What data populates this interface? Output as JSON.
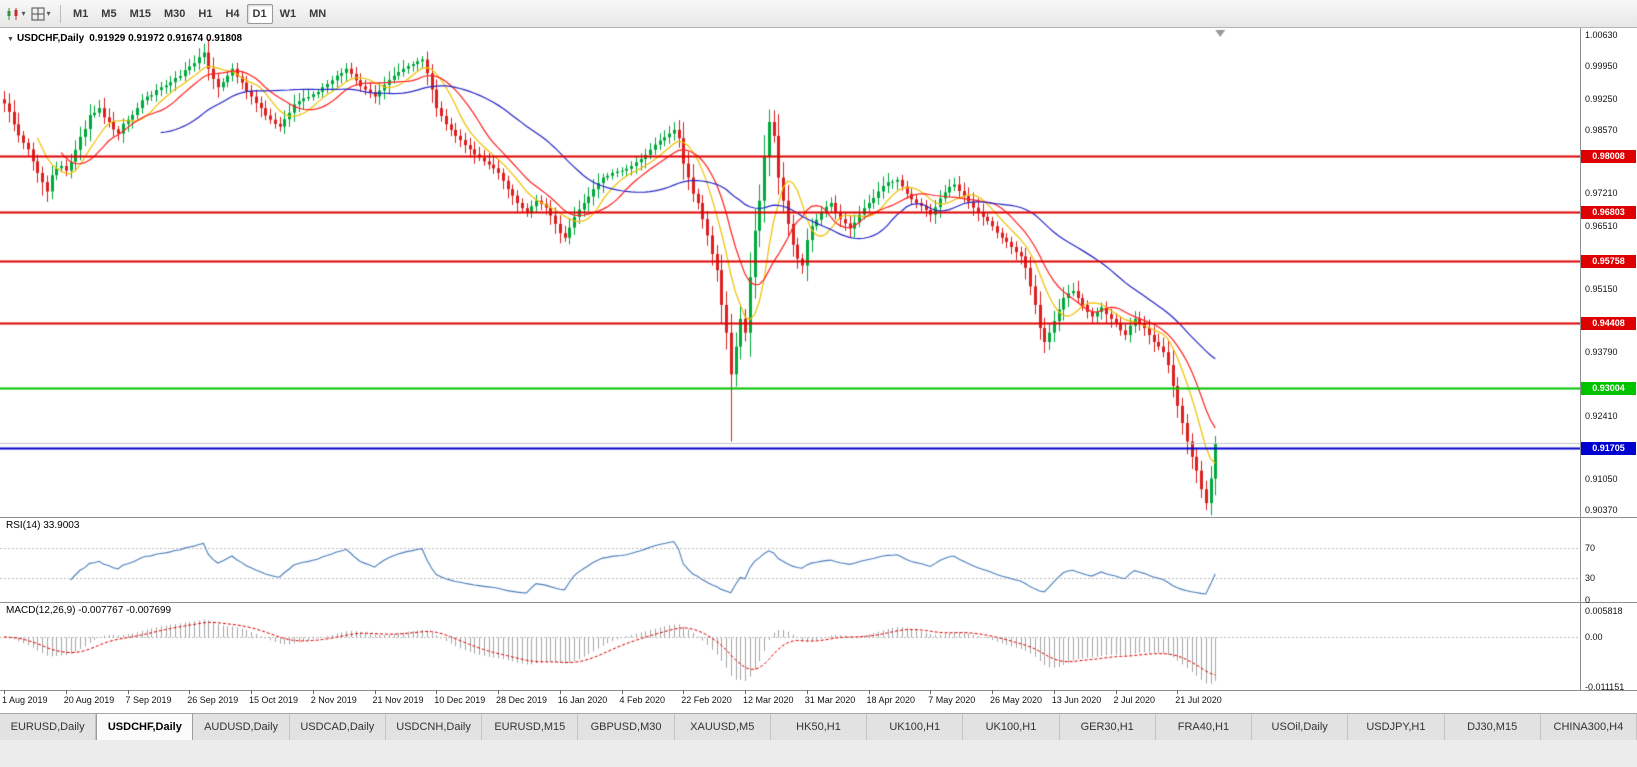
{
  "toolbar": {
    "left_icons": [
      {
        "name": "chart-type-icon"
      },
      {
        "name": "templates-icon"
      }
    ],
    "timeframes": [
      {
        "label": "M1",
        "active": false
      },
      {
        "label": "M5",
        "active": false
      },
      {
        "label": "M15",
        "active": false
      },
      {
        "label": "M30",
        "active": false
      },
      {
        "label": "H1",
        "active": false
      },
      {
        "label": "H4",
        "active": false
      },
      {
        "label": "D1",
        "active": true
      },
      {
        "label": "W1",
        "active": false
      },
      {
        "label": "MN",
        "active": false
      }
    ]
  },
  "chart": {
    "symbol_title": "USDCHF,Daily",
    "ohlc": "0.91929 0.91972 0.91674 0.91808"
  },
  "price_axis": {
    "ticks": [
      {
        "label": "1.00630",
        "value": 1.0063
      },
      {
        "label": "0.99950",
        "value": 0.9995
      },
      {
        "label": "0.99250",
        "value": 0.9925
      },
      {
        "label": "0.98570",
        "value": 0.9857
      },
      {
        "label": "0.97210",
        "value": 0.9721
      },
      {
        "label": "0.96510",
        "value": 0.9651
      },
      {
        "label": "0.95150",
        "value": 0.9515
      },
      {
        "label": "0.93790",
        "value": 0.9379
      },
      {
        "label": "0.92410",
        "value": 0.9241
      },
      {
        "label": "0.91050",
        "value": 0.9105
      },
      {
        "label": "0.90370",
        "value": 0.9037
      }
    ]
  },
  "hlines": [
    {
      "label": "0.98008",
      "price": 0.98008,
      "color": "#DE0000",
      "width": 2
    },
    {
      "label": "0.96803",
      "price": 0.96803,
      "color": "#DE0000",
      "width": 2
    },
    {
      "label": "0.95758",
      "price": 0.95758,
      "color": "#DE0000",
      "width": 2
    },
    {
      "label": "0.94408",
      "price": 0.94408,
      "color": "#DE0000",
      "width": 2
    },
    {
      "label": "0.93004",
      "price": 0.93004,
      "color": "#00C300",
      "width": 2
    },
    {
      "label": "0.91705",
      "price": 0.91705,
      "color": "#0000D0",
      "width": 2
    },
    {
      "label": "",
      "price": 0.9182,
      "color": "#C4C4C4",
      "width": 1
    }
  ],
  "rsi": {
    "label": "RSI(14) 33.9003",
    "period": 14,
    "current": 33.9003,
    "levels": [
      70,
      30
    ],
    "axis_ticks": [
      {
        "label": "70",
        "value": 70
      },
      {
        "label": "30",
        "value": 30
      },
      {
        "label": "0",
        "value": 0
      }
    ]
  },
  "macd": {
    "label": "MACD(12,26,9) -0.007767 -0.007699",
    "fast": 12,
    "slow": 26,
    "signal": 9,
    "main": -0.007767,
    "signal_value": -0.007699,
    "axis_ticks": [
      {
        "label": "0.005818",
        "value": 0.005818
      },
      {
        "label": "0.00",
        "value": 0
      },
      {
        "label": "-0.011151",
        "value": -0.011151
      }
    ]
  },
  "time_axis": [
    {
      "label": "1 Aug 2019",
      "index": 0
    },
    {
      "label": "20 Aug 2019",
      "index": 13
    },
    {
      "label": "7 Sep 2019",
      "index": 26
    },
    {
      "label": "26 Sep 2019",
      "index": 39
    },
    {
      "label": "15 Oct 2019",
      "index": 52
    },
    {
      "label": "2 Nov 2019",
      "index": 65
    },
    {
      "label": "21 Nov 2019",
      "index": 78
    },
    {
      "label": "10 Dec 2019",
      "index": 91
    },
    {
      "label": "28 Dec 2019",
      "index": 104
    },
    {
      "label": "16 Jan 2020",
      "index": 117
    },
    {
      "label": "4 Feb 2020",
      "index": 130
    },
    {
      "label": "22 Feb 2020",
      "index": 143
    },
    {
      "label": "12 Mar 2020",
      "index": 156
    },
    {
      "label": "31 Mar 2020",
      "index": 169
    },
    {
      "label": "18 Apr 2020",
      "index": 182
    },
    {
      "label": "7 May 2020",
      "index": 195
    },
    {
      "label": "26 May 2020",
      "index": 208
    },
    {
      "label": "13 Jun 2020",
      "index": 221
    },
    {
      "label": "2 Jul 2020",
      "index": 234
    },
    {
      "label": "21 Jul 2020",
      "index": 247
    }
  ],
  "tabs": [
    {
      "label": "EURUSD,Daily",
      "active": false
    },
    {
      "label": "USDCHF,Daily",
      "active": true
    },
    {
      "label": "AUDUSD,Daily",
      "active": false
    },
    {
      "label": "USDCAD,Daily",
      "active": false
    },
    {
      "label": "USDCNH,Daily",
      "active": false
    },
    {
      "label": "EURUSD,M15",
      "active": false
    },
    {
      "label": "GBPUSD,M30",
      "active": false
    },
    {
      "label": "XAUUSD,M5",
      "active": false
    },
    {
      "label": "HK50,H1",
      "active": false
    },
    {
      "label": "UK100,H1",
      "active": false
    },
    {
      "label": "UK100,H1",
      "active": false
    },
    {
      "label": "GER30,H1",
      "active": false
    },
    {
      "label": "FRA40,H1",
      "active": false
    },
    {
      "label": "USOil,Daily",
      "active": false
    },
    {
      "label": "USDJPY,H1",
      "active": false
    },
    {
      "label": "DJ30,M15",
      "active": false
    },
    {
      "label": "CHINA300,H4",
      "active": false
    }
  ],
  "colors": {
    "up": "#00A93C",
    "down": "#DC2020",
    "ma_fast": "#F0C000",
    "ma_mid": "#FF2222",
    "ma_slow": "#2626C8",
    "rsi_line": "#4A7EBB",
    "levels_dotted": "#BBBBBB",
    "macd_hist": "#A6A6A6",
    "macd_signal": "#DE0000"
  },
  "chart_data": {
    "type": "candlestick",
    "symbol": "USDCHF",
    "timeframe": "Daily",
    "price_range": [
      0.9022,
      1.0078
    ],
    "closes": [
      0.9915,
      0.9897,
      0.987,
      0.9846,
      0.983,
      0.9816,
      0.979,
      0.9765,
      0.9745,
      0.9725,
      0.976,
      0.9775,
      0.978,
      0.977,
      0.9789,
      0.9815,
      0.9843,
      0.986,
      0.989,
      0.9895,
      0.9905,
      0.9885,
      0.9875,
      0.9859,
      0.985,
      0.9871,
      0.988,
      0.989,
      0.9905,
      0.9922,
      0.993,
      0.9933,
      0.9944,
      0.995,
      0.9954,
      0.9961,
      0.997,
      0.9974,
      0.9987,
      0.9995,
      1.0002,
      1.0015,
      1.0025,
      0.999,
      0.9968,
      0.995,
      0.9961,
      0.9975,
      0.999,
      0.9973,
      0.996,
      0.9942,
      0.993,
      0.9916,
      0.9905,
      0.9889,
      0.988,
      0.9871,
      0.9865,
      0.9881,
      0.9895,
      0.9913,
      0.992,
      0.9926,
      0.9929,
      0.9935,
      0.994,
      0.995,
      0.9957,
      0.9965,
      0.9975,
      0.9981,
      0.999,
      0.9979,
      0.9965,
      0.9952,
      0.9945,
      0.9939,
      0.993,
      0.9943,
      0.9955,
      0.9966,
      0.9975,
      0.9983,
      0.999,
      0.9996,
      1.0,
      1.0006,
      1.001,
      0.998,
      0.9945,
      0.9905,
      0.9888,
      0.987,
      0.9858,
      0.9845,
      0.9836,
      0.9825,
      0.9816,
      0.9805,
      0.9798,
      0.979,
      0.9783,
      0.9775,
      0.9765,
      0.9748,
      0.973,
      0.9716,
      0.97,
      0.9689,
      0.968,
      0.9693,
      0.9705,
      0.9698,
      0.969,
      0.9673,
      0.9655,
      0.9635,
      0.9625,
      0.9647,
      0.967,
      0.9686,
      0.97,
      0.9714,
      0.973,
      0.9743,
      0.9755,
      0.9759,
      0.9765,
      0.9768,
      0.977,
      0.9774,
      0.978,
      0.9788,
      0.9795,
      0.9804,
      0.9815,
      0.9826,
      0.9835,
      0.9842,
      0.985,
      0.9858,
      0.984,
      0.9785,
      0.9755,
      0.972,
      0.97,
      0.9665,
      0.963,
      0.959,
      0.9555,
      0.948,
      0.942,
      0.933,
      0.939,
      0.945,
      0.942,
      0.954,
      0.964,
      0.9705,
      0.98,
      0.9875,
      0.9845,
      0.9755,
      0.9705,
      0.9655,
      0.961,
      0.958,
      0.9565,
      0.962,
      0.965,
      0.9664,
      0.968,
      0.9692,
      0.97,
      0.9681,
      0.9665,
      0.9656,
      0.9645,
      0.9658,
      0.9675,
      0.9689,
      0.97,
      0.9711,
      0.9725,
      0.9737,
      0.9745,
      0.9746,
      0.975,
      0.9736,
      0.972,
      0.9708,
      0.97,
      0.9694,
      0.9685,
      0.9675,
      0.9691,
      0.971,
      0.9723,
      0.9735,
      0.974,
      0.9726,
      0.9715,
      0.9703,
      0.969,
      0.9679,
      0.967,
      0.9661,
      0.965,
      0.9636,
      0.9625,
      0.9616,
      0.9605,
      0.9594,
      0.9585,
      0.956,
      0.952,
      0.948,
      0.943,
      0.94,
      0.942,
      0.9445,
      0.947,
      0.9495,
      0.9505,
      0.951,
      0.9495,
      0.948,
      0.9465,
      0.9455,
      0.9465,
      0.9475,
      0.946,
      0.945,
      0.944,
      0.9425,
      0.9415,
      0.9435,
      0.945,
      0.944,
      0.943,
      0.9415,
      0.94,
      0.939,
      0.9378,
      0.935,
      0.9305,
      0.9262,
      0.9225,
      0.9185,
      0.9152,
      0.9122,
      0.9082,
      0.9052,
      0.9105,
      0.9181
    ],
    "wick_overrides": [
      [
        8,
        "low",
        0.9716
      ],
      [
        117,
        "low",
        0.9613
      ],
      [
        153,
        "low",
        0.9185
      ],
      [
        161,
        "high",
        0.9902
      ],
      [
        219,
        "low",
        0.9376
      ],
      [
        253,
        "low",
        0.9037
      ],
      [
        255,
        "high",
        0.9197
      ]
    ],
    "moving_averages": [
      {
        "period": 8,
        "color_key": "ma_fast"
      },
      {
        "period": 13,
        "color_key": "ma_mid"
      },
      {
        "period": 34,
        "color_key": "ma_slow"
      }
    ]
  }
}
